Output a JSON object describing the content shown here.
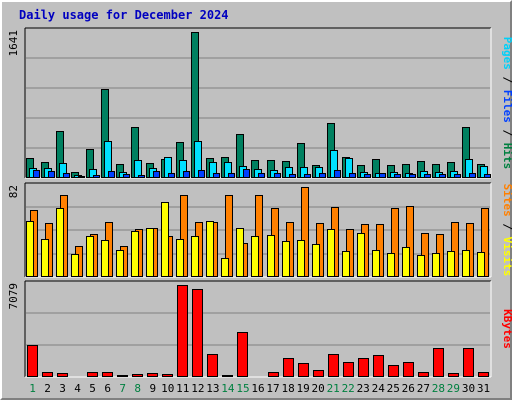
{
  "chart_data": {
    "type": "bar",
    "title": "Daily usage for December 2024",
    "categories": [
      "1",
      "2",
      "3",
      "4",
      "5",
      "6",
      "7",
      "8",
      "9",
      "10",
      "11",
      "12",
      "13",
      "14",
      "15",
      "16",
      "17",
      "18",
      "19",
      "20",
      "21",
      "22",
      "23",
      "24",
      "25",
      "26",
      "27",
      "28",
      "29",
      "30",
      "31"
    ],
    "weekend_days": [
      "1",
      "7",
      "8",
      "14",
      "15",
      "21",
      "22",
      "28",
      "29"
    ],
    "panels": [
      {
        "ymax_label": "1641",
        "ymax": 1641,
        "axis_labels": [
          {
            "text": "Pages",
            "color": "#00d0f8"
          },
          {
            "text": " / ",
            "color": "#000000"
          },
          {
            "text": "Files",
            "color": "#0040ff"
          },
          {
            "text": " / ",
            "color": "#000000"
          },
          {
            "text": "Hits",
            "color": "#008040"
          }
        ],
        "series": [
          {
            "name": "Hits",
            "color": "#008060",
            "values": [
              222,
              175,
              525,
              62,
              323,
              1000,
              162,
              576,
              166,
              218,
              405,
              1641,
              230,
              239,
              493,
              197,
              197,
              191,
              390,
              148,
              620,
              239,
              151,
              216,
              150,
              156,
              195,
              156,
              181,
              576,
              156
            ]
          },
          {
            "name": "Pages",
            "color": "#00e0ff",
            "values": [
              111,
              109,
              169,
              30,
              101,
              412,
              65,
              204,
              107,
              237,
              198,
              417,
              177,
              178,
              130,
              106,
              92,
              125,
              126,
              124,
              316,
              227,
              70,
              56,
              71,
              61,
              80,
              67,
              75,
              214,
              130
            ]
          },
          {
            "name": "Files",
            "color": "#0040ff",
            "values": [
              85,
              81,
              52,
              28,
              37,
              84,
              44,
              37,
              80,
              56,
              79,
              92,
              53,
              56,
              104,
              54,
              53,
              44,
              48,
              56,
              86,
              57,
              47,
              56,
              48,
              46,
              50,
              46,
              50,
              60,
              48
            ]
          }
        ]
      },
      {
        "ymax_label": "82",
        "ymax": 82,
        "axis_labels": [
          {
            "text": "Sites",
            "color": "#ff8000"
          },
          {
            "text": " / ",
            "color": "#000000"
          },
          {
            "text": "Visits",
            "color": "#ffff00"
          }
        ],
        "series": [
          {
            "name": "Sites",
            "color": "#ff8000",
            "values": [
              61,
              49,
              75,
              28,
              39,
              50,
              28,
              44,
              45,
              37,
              75,
              50,
              50,
              75,
              31,
              75,
              63,
              50,
              82,
              49,
              64,
              44,
              48,
              48,
              63,
              65,
              40,
              39,
              50,
              49,
              63
            ]
          },
          {
            "name": "Visits",
            "color": "#ffff00",
            "values": [
              51,
              35,
              63,
              21,
              37,
              34,
              25,
              42,
              45,
              68,
              35,
              37,
              51,
              17,
              45,
              37,
              38,
              33,
              34,
              30,
              44,
              24,
              40,
              25,
              22,
              27,
              20,
              22,
              24,
              25,
              23
            ]
          }
        ]
      },
      {
        "ymax_label": "7079",
        "ymax": 7079,
        "axis_labels": [
          {
            "text": "KBytes",
            "color": "#ff0000"
          }
        ],
        "series": [
          {
            "name": "KBytes",
            "color": "#ff0000",
            "values": [
              2500,
              380,
              320,
              80,
              420,
              380,
              120,
              220,
              280,
              220,
              7079,
              6780,
              1760,
              160,
              3480,
              100,
              400,
              1440,
              1060,
              560,
              1800,
              1160,
              1480,
              1660,
              900,
              1140,
              380,
              2220,
              300,
              2220,
              400
            ]
          }
        ]
      }
    ]
  }
}
